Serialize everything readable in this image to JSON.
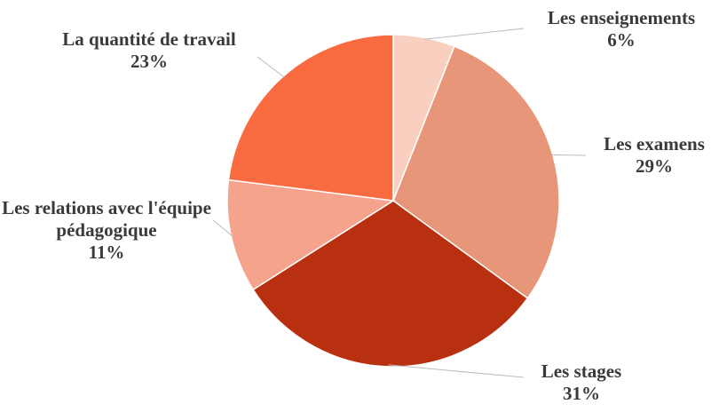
{
  "chart_data": {
    "type": "pie",
    "categories": [
      "Les enseignements",
      "Les examens",
      "Les stages",
      "Les relations avec l'équipe pédagogique",
      "La quantité de travail"
    ],
    "values": [
      6,
      29,
      31,
      11,
      23
    ],
    "value_labels": [
      "6%",
      "29%",
      "31%",
      "11%",
      "23%"
    ],
    "colors": [
      "#f9cfc0",
      "#e8967a",
      "#b83010",
      "#f5a38c",
      "#fb6b40"
    ]
  }
}
